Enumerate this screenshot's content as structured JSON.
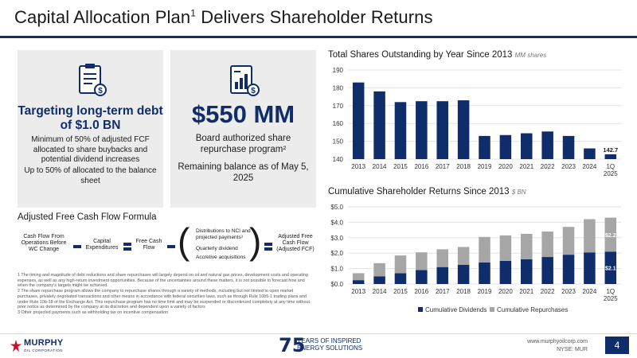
{
  "title": {
    "text": "Capital Allocation Plan",
    "sup": "1",
    "rest": " Delivers Shareholder Returns"
  },
  "card1": {
    "icon": "clipboard-document-icon",
    "head": "Targeting long-term debt of $1.0 BN",
    "text1": "Minimum of 50% of adjusted FCF allocated to share buybacks and potential dividend increases",
    "text2": "Up to 50% of allocated to the balance sheet"
  },
  "card2": {
    "icon": "money-chart-icon",
    "head": "$550 MM",
    "text1": "Board authorized share repurchase program²",
    "text2": "Remaining balance as of May 5, 2025"
  },
  "formula": {
    "title": "Adjusted Free Cash Flow Formula",
    "cash_flow": "Cash Flow From Operations Before WC Change",
    "capex": "Capital Expenditures",
    "fcf": "Free Cash Flow",
    "items": [
      "Distributions to NCI and projected payments³",
      "Quarterly dividend",
      "Accretive acquisitions"
    ],
    "adjusted": "Adjusted Free Cash Flow (Adjusted FCF)"
  },
  "footnotes": [
    "1 The timing and magnitude of debt reductions and share repurchases will largely depend on oil and natural gas prices, development costs and operating expenses, as well as any high-return investment opportunities. Because of the uncertainties around these matters, it is not possible to forecast how and when the company's targets might be achieved.",
    "2 The share repurchase program allows the company to repurchase shares through a variety of methods, including but not limited to open market purchases, privately negotiated transactions and other means in accordance with federal securities laws, such as through Rule 10b5-1 trading plans and under Rule 10b-18 of the Exchange Act. This repurchase program has no time limit and may be suspended or discontinued completely at any time without prior notice as determined by the company at its discretion and dependent upon a variety of factors",
    "3 Other projected payments such as withholding tax on incentive compensation"
  ],
  "chart_data": [
    {
      "type": "bar",
      "title": "Total Shares Outstanding by Year Since 2013",
      "unit": "MM shares",
      "categories": [
        "2013",
        "2014",
        "2015",
        "2016",
        "2017",
        "2018",
        "2019",
        "2020",
        "2021",
        "2022",
        "2023",
        "2024",
        "1Q 2025"
      ],
      "values": [
        183,
        178,
        172,
        172.5,
        172.5,
        173,
        153,
        153.5,
        154.5,
        155.5,
        153,
        146,
        142.7
      ],
      "data_labels": {
        "12": "142.7"
      },
      "yticks": [
        "140",
        "150",
        "160",
        "170",
        "180",
        "190"
      ],
      "ylim": [
        140,
        190
      ],
      "grid": true,
      "color": "#0f2d6b"
    },
    {
      "type": "bar",
      "stacked": true,
      "title": "Cumulative Shareholder Returns Since 2013",
      "unit": "$ BN",
      "categories": [
        "2013",
        "2014",
        "2015",
        "2016",
        "2017",
        "2018",
        "2019",
        "2020",
        "2021",
        "2022",
        "2023",
        "2024",
        "1Q 2025"
      ],
      "series": [
        {
          "name": "Cumulative Dividends",
          "color": "#0f2d6b",
          "values": [
            0.25,
            0.5,
            0.7,
            0.9,
            1.1,
            1.25,
            1.4,
            1.5,
            1.6,
            1.75,
            1.9,
            2.05,
            2.1
          ]
        },
        {
          "name": "Cumulative Repurchases",
          "color": "#a6a6a6",
          "values": [
            0.45,
            0.85,
            1.15,
            1.15,
            1.15,
            1.15,
            1.65,
            1.65,
            1.65,
            1.65,
            1.8,
            2.15,
            2.2
          ]
        }
      ],
      "data_labels": {
        "12": [
          "$2.1",
          "$2.2"
        ]
      },
      "yticks": [
        "$0.0",
        "$1.0",
        "$2.0",
        "$3.0",
        "$4.0",
        "$5.0"
      ],
      "ylim": [
        0,
        5
      ],
      "grid": true,
      "legend": "bottom"
    }
  ],
  "footer": {
    "logo": "MURPHY",
    "logo_sub": "OIL CORPORATION",
    "anniv_num": "75",
    "anniv_text_1": "YEARS OF INSPIRED",
    "anniv_text_2": "ENERGY SOLUTIONS",
    "site": "www.murphyoilcorp.com",
    "ticker": "NYSE: MUR",
    "page": "4"
  }
}
